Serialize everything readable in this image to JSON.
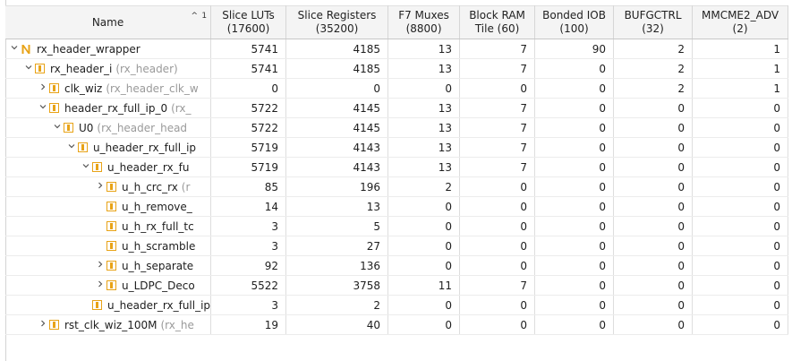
{
  "columns": [
    {
      "label": "Name"
    },
    {
      "label": "Slice LUTs\n(17600)"
    },
    {
      "label": "Slice Registers\n(35200)"
    },
    {
      "label": "F7 Muxes\n(8800)"
    },
    {
      "label": "Block RAM\nTile (60)"
    },
    {
      "label": "Bonded IOB\n(100)"
    },
    {
      "label": "BUFGCTRL\n(32)"
    },
    {
      "label": "MMCME2_ADV\n(2)"
    }
  ],
  "sort_indicator": {
    "arrow": "^",
    "index": "1"
  },
  "rows": [
    {
      "level": 0,
      "expander": "expanded",
      "icon": "n-icon",
      "name": "rx_header_wrapper",
      "sub": "",
      "values": [
        "5741",
        "4185",
        "13",
        "7",
        "90",
        "2",
        "1"
      ]
    },
    {
      "level": 1,
      "expander": "expanded",
      "icon": "module-icon",
      "name": "rx_header_i",
      "sub": "(rx_header)",
      "values": [
        "5741",
        "4185",
        "13",
        "7",
        "0",
        "2",
        "1"
      ]
    },
    {
      "level": 2,
      "expander": "collapsed",
      "icon": "module-icon",
      "name": "clk_wiz",
      "sub": "(rx_header_clk_w",
      "values": [
        "0",
        "0",
        "0",
        "0",
        "0",
        "2",
        "1"
      ]
    },
    {
      "level": 2,
      "expander": "expanded",
      "icon": "module-icon",
      "name": "header_rx_full_ip_0",
      "sub": "(rx_",
      "values": [
        "5722",
        "4145",
        "13",
        "7",
        "0",
        "0",
        "0"
      ]
    },
    {
      "level": 3,
      "expander": "expanded",
      "icon": "module-icon",
      "name": "U0",
      "sub": "(rx_header_head",
      "values": [
        "5722",
        "4145",
        "13",
        "7",
        "0",
        "0",
        "0"
      ]
    },
    {
      "level": 4,
      "expander": "expanded",
      "icon": "module-icon",
      "name": "u_header_rx_full_ip",
      "sub": "",
      "values": [
        "5719",
        "4143",
        "13",
        "7",
        "0",
        "0",
        "0"
      ]
    },
    {
      "level": 5,
      "expander": "expanded",
      "icon": "module-icon",
      "name": "u_header_rx_fu",
      "sub": "",
      "values": [
        "5719",
        "4143",
        "13",
        "7",
        "0",
        "0",
        "0"
      ]
    },
    {
      "level": 6,
      "expander": "collapsed",
      "icon": "module-icon",
      "name": "u_h_crc_rx",
      "sub": "(r",
      "values": [
        "85",
        "196",
        "2",
        "0",
        "0",
        "0",
        "0"
      ]
    },
    {
      "level": 6,
      "expander": "none",
      "icon": "module-icon",
      "name": "u_h_remove_",
      "sub": "",
      "values": [
        "14",
        "13",
        "0",
        "0",
        "0",
        "0",
        "0"
      ]
    },
    {
      "level": 6,
      "expander": "none",
      "icon": "module-icon",
      "name": "u_h_rx_full_tc",
      "sub": "",
      "values": [
        "3",
        "5",
        "0",
        "0",
        "0",
        "0",
        "0"
      ]
    },
    {
      "level": 6,
      "expander": "none",
      "icon": "module-icon",
      "name": "u_h_scramble",
      "sub": "",
      "values": [
        "3",
        "27",
        "0",
        "0",
        "0",
        "0",
        "0"
      ]
    },
    {
      "level": 6,
      "expander": "collapsed",
      "icon": "module-icon",
      "name": "u_h_separate",
      "sub": "",
      "values": [
        "92",
        "136",
        "0",
        "0",
        "0",
        "0",
        "0"
      ]
    },
    {
      "level": 6,
      "expander": "collapsed",
      "icon": "module-icon",
      "name": "u_LDPC_Deco",
      "sub": "",
      "values": [
        "5522",
        "3758",
        "11",
        "7",
        "0",
        "0",
        "0"
      ]
    },
    {
      "level": 5,
      "expander": "none",
      "icon": "module-icon",
      "name": "u_header_rx_full_ip",
      "sub": "",
      "values": [
        "3",
        "2",
        "0",
        "0",
        "0",
        "0",
        "0"
      ]
    },
    {
      "level": 2,
      "expander": "collapsed",
      "icon": "module-icon",
      "name": "rst_clk_wiz_100M",
      "sub": "(rx_he",
      "values": [
        "19",
        "40",
        "0",
        "0",
        "0",
        "0",
        "0"
      ]
    }
  ],
  "colors": {
    "n_icon": "#e8a317",
    "module_icon": "#e8a317"
  }
}
